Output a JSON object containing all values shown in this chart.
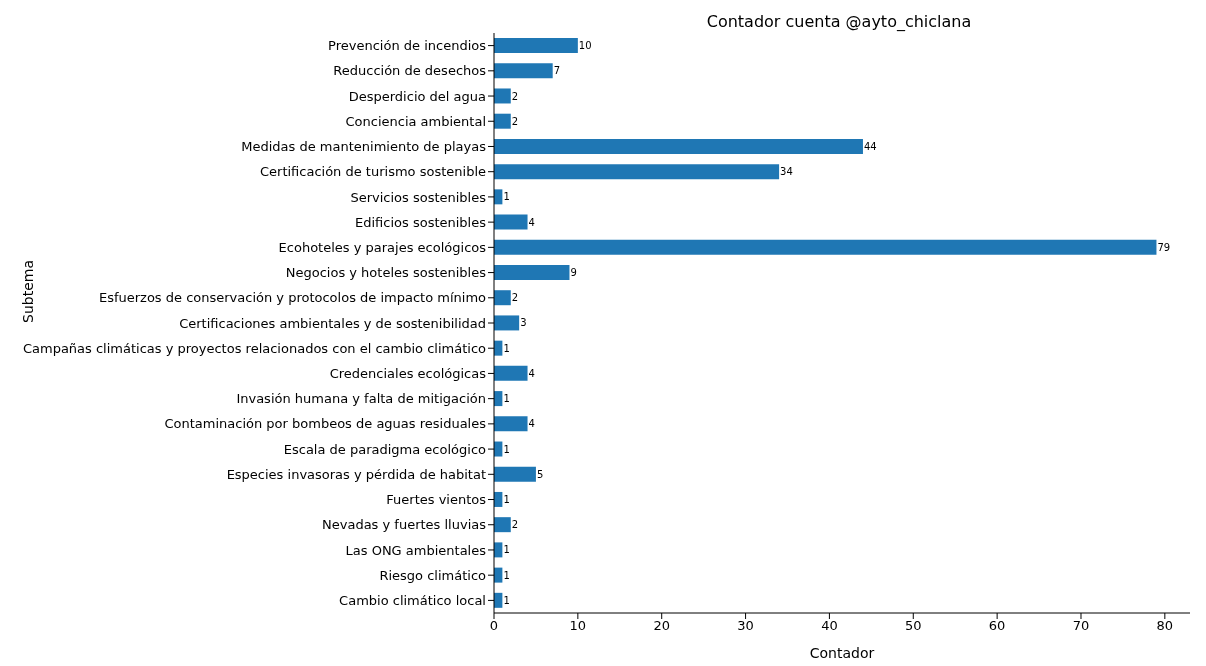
{
  "chart_data": {
    "type": "bar",
    "orientation": "horizontal",
    "title": "Contador cuenta @ayto_chiclana",
    "xlabel": "Contador",
    "ylabel": "Subtema",
    "categories": [
      "Prevención de incendios",
      "Reducción de desechos",
      "Desperdicio del agua",
      "Conciencia ambiental",
      "Medidas de mantenimiento de playas",
      "Certificación de turismo sostenible",
      "Servicios sostenibles",
      "Edificios sostenibles",
      "Ecohoteles y parajes ecológicos",
      "Negocios y hoteles sostenibles",
      "Esfuerzos de conservación y protocolos de impacto mínimo",
      "Certificaciones ambientales y de sostenibilidad",
      "Campañas climáticas y proyectos relacionados con el cambio climático",
      "Credenciales ecológicas",
      "Invasión humana y falta de mitigación",
      "Contaminación por bombeos de aguas residuales",
      "Escala de paradigma ecológico",
      "Especies invasoras y pérdida de habitat",
      "Fuertes vientos",
      "Nevadas y fuertes lluvias",
      "Las ONG ambientales",
      "Riesgo climático",
      "Cambio climático local"
    ],
    "values": [
      10,
      7,
      2,
      2,
      44,
      34,
      1,
      4,
      79,
      9,
      2,
      3,
      1,
      4,
      1,
      4,
      1,
      5,
      1,
      2,
      1,
      1,
      1
    ],
    "color": "#1f77b4",
    "data_labels": true,
    "xlim": [
      0,
      83
    ],
    "xticks": [
      0,
      10,
      20,
      30,
      40,
      50,
      60,
      70,
      80
    ],
    "grid": false,
    "legend": false
  }
}
